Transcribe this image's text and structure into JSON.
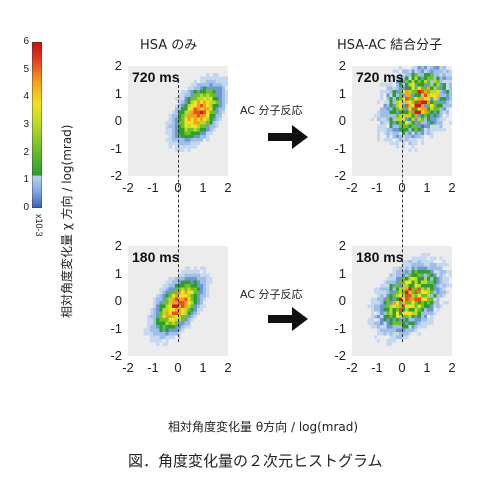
{
  "figure": {
    "caption": "図．角度変化量の２次元ヒストグラム",
    "x_axis_label": "相対角度変化量 θ方向 / log(mrad)",
    "y_axis_label": "相対角度変化量 χ 方向 / log(mrad)",
    "arrow_label": "AC 分子反応",
    "colorbar": {
      "ticks": [
        "6",
        "5",
        "4",
        "3",
        "2",
        "1",
        "0"
      ],
      "unit": "x10-3",
      "colors": [
        "#3b5fb4",
        "#7fa8e0",
        "#b9d2f0",
        "#2e9e2e",
        "#b8d92a",
        "#f1e21e",
        "#f2a11e",
        "#e03a1e",
        "#c81010"
      ]
    }
  },
  "chart_data": [
    {
      "type": "heatmap",
      "column_title": "HSA のみ",
      "panel_label": "720 ms",
      "xlim": [
        -2,
        2
      ],
      "ylim": [
        -2,
        2
      ],
      "x_ticks": [
        "-2",
        "-1",
        "0",
        "1",
        "2"
      ],
      "y_ticks": [
        "2",
        "1",
        "0",
        "-1",
        "-2"
      ],
      "dashed_x": 0.2,
      "peak": {
        "x": 0.8,
        "y": 0.3
      },
      "spread": {
        "x": 0.55,
        "y": 0.6
      },
      "correlation": 0.5,
      "noise": 0.25
    },
    {
      "type": "heatmap",
      "column_title": "HSA-AC 結合分子",
      "panel_label": "720 ms",
      "xlim": [
        -2,
        2
      ],
      "ylim": [
        -2,
        2
      ],
      "x_ticks": [
        "-2",
        "-1",
        "0",
        "1",
        "2"
      ],
      "y_ticks": [
        "2",
        "1",
        "0",
        "-1",
        "-2"
      ],
      "dashed_x": 0.2,
      "peak": {
        "x": 0.6,
        "y": 0.7
      },
      "spread": {
        "x": 0.75,
        "y": 0.75
      },
      "correlation": 0.3,
      "noise": 0.6
    },
    {
      "type": "heatmap",
      "column_title": "",
      "panel_label": "180 ms",
      "xlim": [
        -2,
        2
      ],
      "ylim": [
        -2,
        2
      ],
      "x_ticks": [
        "-2",
        "-1",
        "0",
        "1",
        "2"
      ],
      "y_ticks": [
        "2",
        "1",
        "0",
        "-1",
        "-2"
      ],
      "dashed_x": 0.2,
      "peak": {
        "x": 0.0,
        "y": -0.15
      },
      "spread": {
        "x": 0.55,
        "y": 0.6
      },
      "correlation": 0.55,
      "noise": 0.25
    },
    {
      "type": "heatmap",
      "column_title": "",
      "panel_label": "180 ms",
      "xlim": [
        -2,
        2
      ],
      "ylim": [
        -2,
        2
      ],
      "x_ticks": [
        "-2",
        "-1",
        "0",
        "1",
        "2"
      ],
      "y_ticks": [
        "2",
        "1",
        "0",
        "-1",
        "-2"
      ],
      "dashed_x": 0.2,
      "peak": {
        "x": 0.3,
        "y": 0.1
      },
      "spread": {
        "x": 0.7,
        "y": 0.7
      },
      "correlation": 0.4,
      "noise": 0.5
    }
  ]
}
